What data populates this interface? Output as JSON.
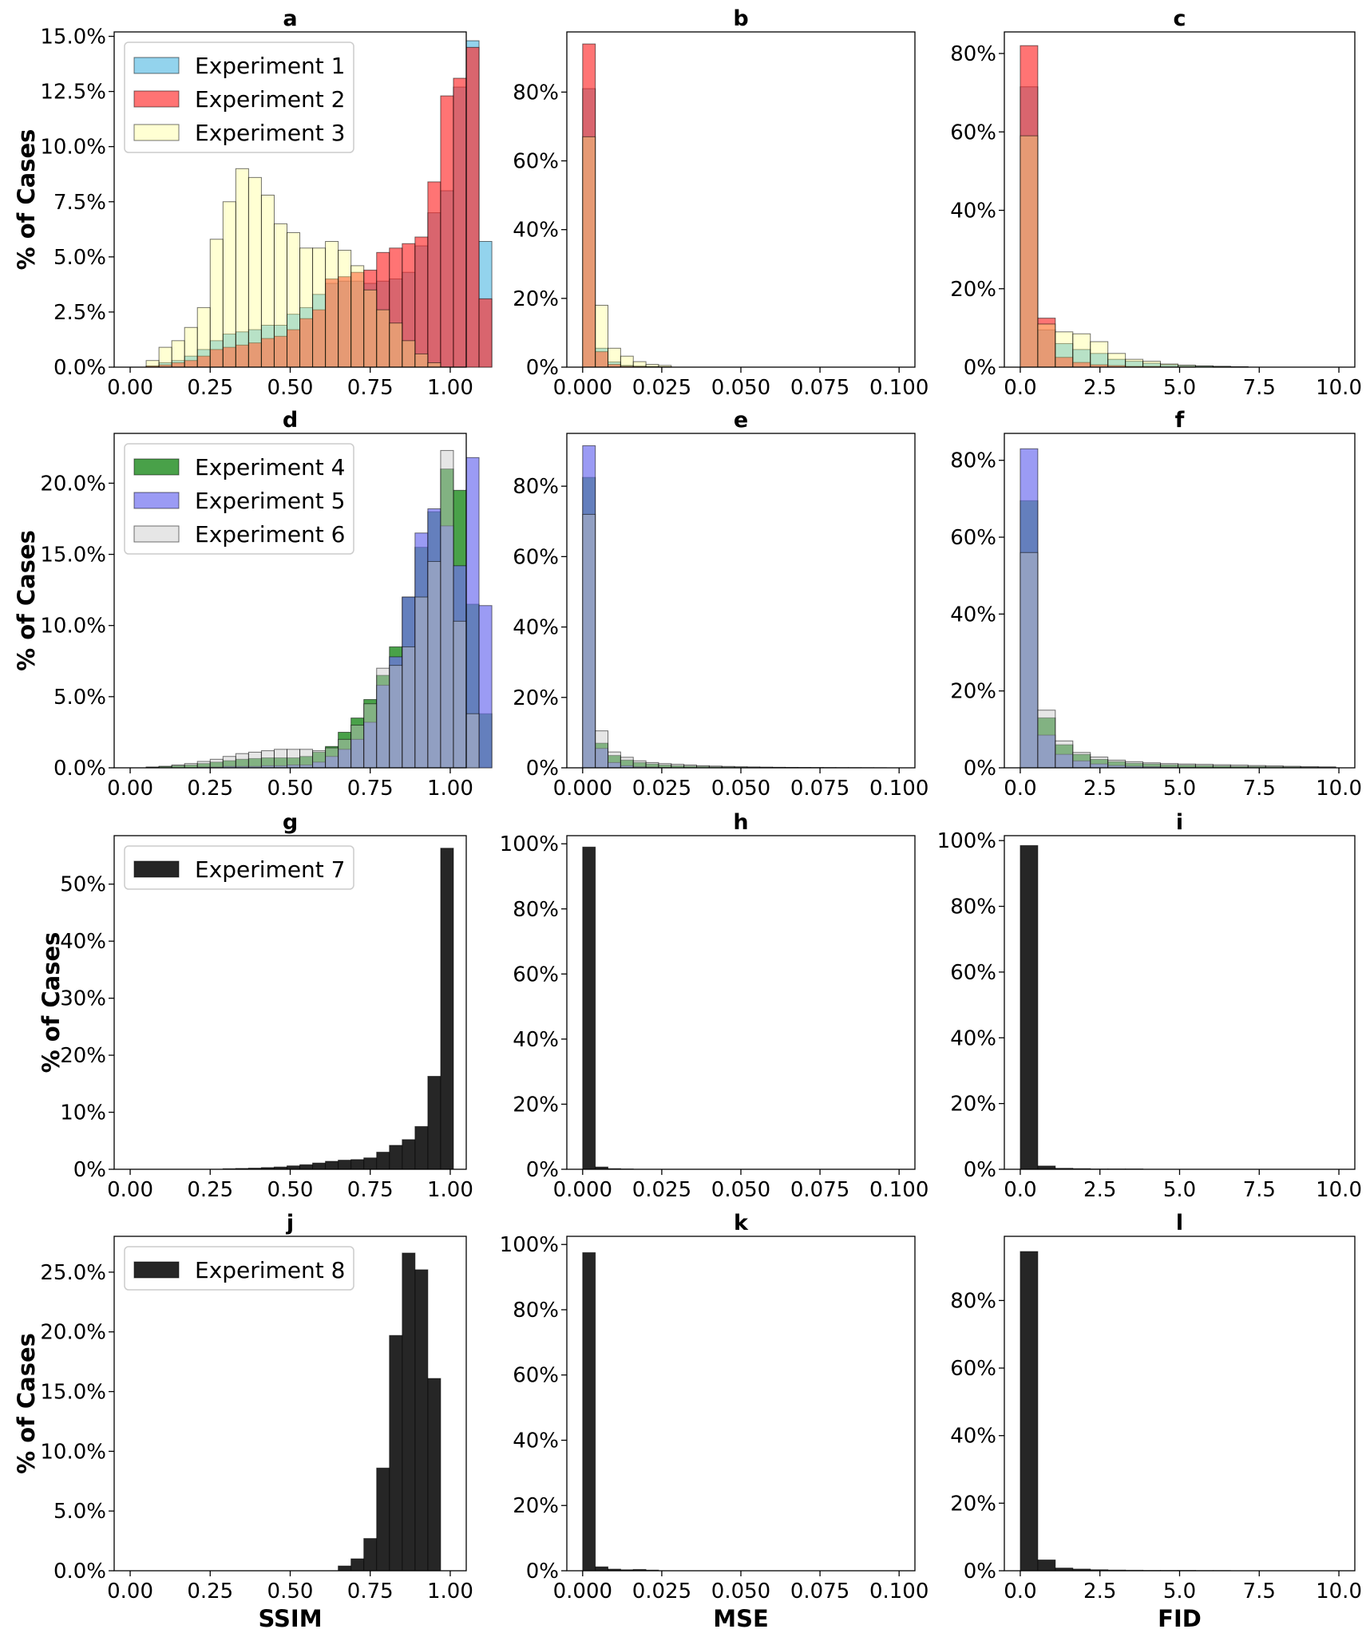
{
  "colors": {
    "Experiment 1": "#87ceeb",
    "Experiment 2": "#ff2a2a",
    "Experiment 3": "#ffff80",
    "Experiment 4": "#1c8a1c",
    "Experiment 5": "#7070f0",
    "Experiment 6": "#c8c8c8",
    "Experiment 7": "#1a1a1a",
    "Experiment 8": "#1a1a1a"
  },
  "row_ylabel": "% of Cases",
  "column_xlabels": [
    "SSIM",
    "MSE",
    "FID"
  ],
  "chart_data": [
    {
      "panel": "a",
      "type": "bar",
      "title": "a",
      "ylabel": "% of Cases",
      "xlabel": "",
      "xlim": [
        -0.05,
        1.05
      ],
      "ylim": [
        0,
        15.2
      ],
      "xticks": [
        0,
        0.25,
        0.5,
        0.75,
        1.0
      ],
      "xtick_labels": [
        "0.00",
        "0.25",
        "0.50",
        "0.75",
        "1.00"
      ],
      "yticks": [
        0,
        2.5,
        5,
        7.5,
        10,
        12.5,
        15
      ],
      "ytick_labels": [
        "0.0%",
        "2.5%",
        "5.0%",
        "7.5%",
        "10.0%",
        "12.5%",
        "15.0%"
      ],
      "bin_start": 0.05,
      "bin_width": 0.04,
      "legend": "top-left",
      "series": [
        {
          "name": "Experiment 1",
          "alpha": 0.9,
          "values": [
            0.05,
            0.2,
            0.3,
            0.5,
            0.8,
            1.2,
            1.5,
            1.6,
            1.7,
            1.9,
            1.9,
            2.4,
            2.7,
            3.3,
            3.8,
            3.9,
            3.9,
            3.8,
            3.9,
            4.0,
            4.3,
            5.5,
            7.0,
            8.0,
            12.7,
            14.8,
            5.7
          ]
        },
        {
          "name": "Experiment 2",
          "alpha": 0.65,
          "values": [
            0.05,
            0.1,
            0.2,
            0.3,
            0.5,
            0.8,
            0.9,
            1.0,
            1.1,
            1.3,
            1.4,
            1.7,
            2.2,
            2.6,
            4.0,
            4.1,
            4.3,
            4.4,
            5.2,
            5.4,
            5.6,
            5.9,
            8.4,
            12.3,
            13.1,
            14.5,
            3.1
          ]
        },
        {
          "name": "Experiment 3",
          "alpha": 0.35,
          "values": [
            0.3,
            0.9,
            1.2,
            1.8,
            2.7,
            5.8,
            7.5,
            9.0,
            8.6,
            7.8,
            6.5,
            6.1,
            5.4,
            5.4,
            5.7,
            5.3,
            4.6,
            3.5,
            2.6,
            2.0,
            1.2,
            0.6,
            0.2,
            0.0,
            0.0,
            0.0,
            0.0
          ]
        }
      ]
    },
    {
      "panel": "b",
      "type": "bar",
      "title": "b",
      "ylabel": "",
      "xlabel": "",
      "xlim": [
        -0.005,
        0.105
      ],
      "ylim": [
        0,
        97.5
      ],
      "xticks": [
        0,
        0.025,
        0.05,
        0.075,
        0.1
      ],
      "xtick_labels": [
        "0.000",
        "0.025",
        "0.050",
        "0.075",
        "0.100"
      ],
      "yticks": [
        0,
        20,
        40,
        60,
        80
      ],
      "ytick_labels": [
        "0%",
        "20%",
        "40%",
        "60%",
        "80%"
      ],
      "bin_start": 0,
      "bin_width": 0.004,
      "series": [
        {
          "name": "Experiment 1",
          "alpha": 0.9,
          "values": [
            81,
            5.5,
            1.5,
            0.5,
            0.3,
            0.2,
            0.1
          ]
        },
        {
          "name": "Experiment 2",
          "alpha": 0.65,
          "values": [
            94,
            4.5,
            0.8,
            0.3,
            0.2,
            0.1,
            0.1
          ]
        },
        {
          "name": "Experiment 3",
          "alpha": 0.35,
          "values": [
            67,
            18,
            5.5,
            3.2,
            1.6,
            0.8,
            0.5
          ]
        }
      ]
    },
    {
      "panel": "c",
      "type": "bar",
      "title": "c",
      "ylabel": "",
      "xlabel": "",
      "xlim": [
        -0.5,
        10.5
      ],
      "ylim": [
        0,
        85.5
      ],
      "xticks": [
        0,
        2.5,
        5,
        7.5,
        10
      ],
      "xtick_labels": [
        "0.0",
        "2.5",
        "5.0",
        "7.5",
        "10.0"
      ],
      "yticks": [
        0,
        20,
        40,
        60,
        80
      ],
      "ytick_labels": [
        "0%",
        "20%",
        "40%",
        "60%",
        "80%"
      ],
      "bin_start": 0,
      "bin_width": 0.55,
      "series": [
        {
          "name": "Experiment 1",
          "alpha": 0.9,
          "values": [
            71.5,
            9.5,
            6,
            4.5,
            3.5,
            2,
            1.5,
            1,
            0.6,
            0.4,
            0.3,
            0.2,
            0.1
          ]
        },
        {
          "name": "Experiment 2",
          "alpha": 0.65,
          "values": [
            82,
            12.5,
            2.5,
            1.2,
            0.6,
            0.4,
            0.2,
            0.2,
            0.1,
            0.1,
            0.0,
            0.0,
            0.0
          ]
        },
        {
          "name": "Experiment 3",
          "alpha": 0.35,
          "values": [
            59,
            11,
            9,
            8.5,
            6.5,
            3.5,
            2,
            1.5,
            0.8,
            0.5,
            0.3,
            0.2,
            0.1
          ]
        }
      ]
    },
    {
      "panel": "d",
      "type": "bar",
      "title": "d",
      "ylabel": "% of Cases",
      "xlabel": "",
      "xlim": [
        -0.05,
        1.05
      ],
      "ylim": [
        0,
        23.5
      ],
      "xticks": [
        0,
        0.25,
        0.5,
        0.75,
        1.0
      ],
      "xtick_labels": [
        "0.00",
        "0.25",
        "0.50",
        "0.75",
        "1.00"
      ],
      "yticks": [
        0,
        5,
        10,
        15,
        20
      ],
      "ytick_labels": [
        "0.0%",
        "5.0%",
        "10.0%",
        "15.0%",
        "20.0%"
      ],
      "bin_start": 0.05,
      "bin_width": 0.04,
      "legend": "top-left",
      "series": [
        {
          "name": "Experiment 4",
          "alpha": 0.8,
          "values": [
            0.05,
            0.1,
            0.15,
            0.2,
            0.3,
            0.4,
            0.5,
            0.6,
            0.65,
            0.7,
            0.7,
            0.7,
            0.8,
            1.1,
            1.5,
            2.5,
            3.5,
            4.8,
            6.5,
            8.5,
            12.0,
            15.5,
            18.0,
            21.0,
            19.5,
            11.5,
            3.8
          ]
        },
        {
          "name": "Experiment 5",
          "alpha": 0.7,
          "values": [
            0.0,
            0.0,
            0.0,
            0.0,
            0.05,
            0.05,
            0.1,
            0.1,
            0.1,
            0.15,
            0.15,
            0.2,
            0.2,
            0.4,
            0.8,
            1.3,
            2.0,
            3.2,
            5.8,
            7.8,
            12.0,
            16.5,
            18.2,
            17.0,
            14.2,
            21.8,
            11.4
          ]
        },
        {
          "name": "Experiment 6",
          "alpha": 0.45,
          "values": [
            0.05,
            0.1,
            0.2,
            0.3,
            0.45,
            0.6,
            0.8,
            1.0,
            1.1,
            1.2,
            1.3,
            1.3,
            1.3,
            1.2,
            1.4,
            2.0,
            3.0,
            4.5,
            7.0,
            7.2,
            8.5,
            12.0,
            14.5,
            22.3,
            10.3,
            3.8,
            0.0
          ]
        }
      ]
    },
    {
      "panel": "e",
      "type": "bar",
      "title": "e",
      "ylabel": "",
      "xlabel": "",
      "xlim": [
        -0.005,
        0.105
      ],
      "ylim": [
        0,
        95
      ],
      "xticks": [
        0,
        0.025,
        0.05,
        0.075,
        0.1
      ],
      "xtick_labels": [
        "0.000",
        "0.025",
        "0.050",
        "0.075",
        "0.100"
      ],
      "yticks": [
        0,
        20,
        40,
        60,
        80
      ],
      "ytick_labels": [
        "0%",
        "20%",
        "40%",
        "60%",
        "80%"
      ],
      "bin_start": 0,
      "bin_width": 0.004,
      "series": [
        {
          "name": "Experiment 4",
          "alpha": 0.8,
          "values": [
            82.5,
            7,
            3.5,
            2.2,
            1.5,
            1.1,
            0.8,
            0.6,
            0.5,
            0.4,
            0.3,
            0.25,
            0.2,
            0.15,
            0.12,
            0.1,
            0.08,
            0.06,
            0.05,
            0.04,
            0.03,
            0.02,
            0.02,
            0.01
          ]
        },
        {
          "name": "Experiment 5",
          "alpha": 0.7,
          "values": [
            91.5,
            5.5,
            1.5,
            0.6,
            0.3,
            0.2,
            0.1,
            0.05,
            0.05,
            0.03,
            0.02,
            0.01,
            0.01,
            0.0,
            0.0,
            0.0,
            0.0,
            0.0,
            0.0,
            0.0,
            0.0,
            0.0,
            0.0,
            0.0
          ]
        },
        {
          "name": "Experiment 6",
          "alpha": 0.45,
          "values": [
            72,
            10.5,
            4.5,
            3,
            2,
            1.5,
            1.2,
            1,
            0.8,
            0.6,
            0.5,
            0.4,
            0.3,
            0.25,
            0.2,
            0.15,
            0.12,
            0.1,
            0.08,
            0.06,
            0.05,
            0.04,
            0.03,
            0.02
          ]
        }
      ]
    },
    {
      "panel": "f",
      "type": "bar",
      "title": "f",
      "ylabel": "",
      "xlabel": "",
      "xlim": [
        -0.5,
        10.5
      ],
      "ylim": [
        0,
        87
      ],
      "xticks": [
        0,
        2.5,
        5,
        7.5,
        10
      ],
      "xtick_labels": [
        "0.0",
        "2.5",
        "5.0",
        "7.5",
        "10.0"
      ],
      "yticks": [
        0,
        20,
        40,
        60,
        80
      ],
      "ytick_labels": [
        "0%",
        "20%",
        "40%",
        "60%",
        "80%"
      ],
      "bin_start": 0,
      "bin_width": 0.55,
      "series": [
        {
          "name": "Experiment 4",
          "alpha": 0.8,
          "values": [
            69.5,
            13,
            6,
            3.5,
            2.2,
            1.6,
            1.2,
            1,
            0.8,
            0.7,
            0.6,
            0.5,
            0.4,
            0.35,
            0.3,
            0.25,
            0.2,
            0.15
          ]
        },
        {
          "name": "Experiment 5",
          "alpha": 0.7,
          "values": [
            83,
            8.5,
            3.5,
            1.8,
            1,
            0.6,
            0.4,
            0.3,
            0.2,
            0.15,
            0.1,
            0.08,
            0.06,
            0.05,
            0.04,
            0.03,
            0.02,
            0.02
          ]
        },
        {
          "name": "Experiment 6",
          "alpha": 0.45,
          "values": [
            56,
            15,
            7,
            4,
            2.8,
            2,
            1.6,
            1.3,
            1.1,
            1,
            0.9,
            0.8,
            0.7,
            0.6,
            0.5,
            0.4,
            0.3,
            0.25
          ]
        }
      ]
    },
    {
      "panel": "g",
      "type": "bar",
      "title": "g",
      "ylabel": "% of Cases",
      "xlabel": "",
      "xlim": [
        -0.05,
        1.05
      ],
      "ylim": [
        0,
        58.5
      ],
      "xticks": [
        0,
        0.25,
        0.5,
        0.75,
        1.0
      ],
      "xtick_labels": [
        "0.00",
        "0.25",
        "0.50",
        "0.75",
        "1.00"
      ],
      "yticks": [
        0,
        10,
        20,
        30,
        40,
        50
      ],
      "ytick_labels": [
        "0%",
        "10%",
        "20%",
        "30%",
        "40%",
        "50%"
      ],
      "bin_start": 0.29,
      "bin_width": 0.04,
      "legend": "top-left",
      "series": [
        {
          "name": "Experiment 7",
          "alpha": 0.95,
          "values": [
            0.1,
            0.15,
            0.2,
            0.3,
            0.4,
            0.6,
            0.8,
            1.1,
            1.4,
            1.6,
            1.7,
            2.0,
            3.0,
            4.2,
            5.2,
            7.5,
            16.3,
            56.3
          ]
        }
      ]
    },
    {
      "panel": "h",
      "type": "bar",
      "title": "h",
      "ylabel": "",
      "xlabel": "",
      "xlim": [
        -0.005,
        0.105
      ],
      "ylim": [
        0,
        102.5
      ],
      "xticks": [
        0,
        0.025,
        0.05,
        0.075,
        0.1
      ],
      "xtick_labels": [
        "0.000",
        "0.025",
        "0.050",
        "0.075",
        "0.100"
      ],
      "yticks": [
        0,
        20,
        40,
        60,
        80,
        100
      ],
      "ytick_labels": [
        "0%",
        "20%",
        "40%",
        "60%",
        "80%",
        "100%"
      ],
      "bin_start": 0,
      "bin_width": 0.004,
      "series": [
        {
          "name": "Experiment 7",
          "alpha": 0.95,
          "values": [
            99,
            0.7,
            0.2,
            0.1
          ]
        }
      ]
    },
    {
      "panel": "i",
      "type": "bar",
      "title": "i",
      "ylabel": "",
      "xlabel": "",
      "xlim": [
        -0.5,
        10.5
      ],
      "ylim": [
        0,
        101.5
      ],
      "xticks": [
        0,
        2.5,
        5,
        7.5,
        10
      ],
      "xtick_labels": [
        "0.0",
        "2.5",
        "5.0",
        "7.5",
        "10.0"
      ],
      "yticks": [
        0,
        20,
        40,
        60,
        80,
        100
      ],
      "ytick_labels": [
        "0%",
        "20%",
        "40%",
        "60%",
        "80%",
        "100%"
      ],
      "bin_start": 0,
      "bin_width": 0.55,
      "series": [
        {
          "name": "Experiment 7",
          "alpha": 0.95,
          "values": [
            98.5,
            1.0,
            0.3,
            0.2,
            0.1,
            0.1,
            0.1
          ]
        }
      ]
    },
    {
      "panel": "j",
      "type": "bar",
      "title": "j",
      "ylabel": "% of Cases",
      "xlabel": "SSIM",
      "xlim": [
        -0.05,
        1.05
      ],
      "ylim": [
        0,
        28
      ],
      "xticks": [
        0,
        0.25,
        0.5,
        0.75,
        1.0
      ],
      "xtick_labels": [
        "0.00",
        "0.25",
        "0.50",
        "0.75",
        "1.00"
      ],
      "yticks": [
        0,
        5,
        10,
        15,
        20,
        25
      ],
      "ytick_labels": [
        "0.0%",
        "5.0%",
        "10.0%",
        "15.0%",
        "20.0%",
        "25.0%"
      ],
      "bin_start": 0.65,
      "bin_width": 0.04,
      "legend": "top-left",
      "series": [
        {
          "name": "Experiment 8",
          "alpha": 0.95,
          "values": [
            0.4,
            1.0,
            2.7,
            8.6,
            19.7,
            26.6,
            25.2,
            16.1
          ]
        }
      ]
    },
    {
      "panel": "k",
      "type": "bar",
      "title": "k",
      "ylabel": "",
      "xlabel": "MSE",
      "xlim": [
        -0.005,
        0.105
      ],
      "ylim": [
        0,
        102.5
      ],
      "xticks": [
        0,
        0.025,
        0.05,
        0.075,
        0.1
      ],
      "xtick_labels": [
        "0.000",
        "0.025",
        "0.050",
        "0.075",
        "0.100"
      ],
      "yticks": [
        0,
        20,
        40,
        60,
        80,
        100
      ],
      "ytick_labels": [
        "0%",
        "20%",
        "40%",
        "60%",
        "80%",
        "100%"
      ],
      "bin_start": 0,
      "bin_width": 0.004,
      "series": [
        {
          "name": "Experiment 8",
          "alpha": 0.95,
          "values": [
            97.5,
            1.2,
            0.5,
            0.3,
            0.4,
            0.2
          ]
        }
      ]
    },
    {
      "panel": "l",
      "type": "bar",
      "title": "l",
      "ylabel": "",
      "xlabel": "FID",
      "xlim": [
        -0.5,
        10.5
      ],
      "ylim": [
        0,
        99
      ],
      "xticks": [
        0,
        2.5,
        5,
        7.5,
        10
      ],
      "xtick_labels": [
        "0.0",
        "2.5",
        "5.0",
        "7.5",
        "10.0"
      ],
      "yticks": [
        0,
        20,
        40,
        60,
        80
      ],
      "ytick_labels": [
        "0%",
        "20%",
        "40%",
        "60%",
        "80%"
      ],
      "bin_start": 0,
      "bin_width": 0.55,
      "series": [
        {
          "name": "Experiment 8",
          "alpha": 0.95,
          "values": [
            94.5,
            3.2,
            0.8,
            0.5,
            0.3,
            0.2,
            0.15,
            0.1,
            0.1,
            0.1,
            0.05,
            0.05
          ]
        }
      ]
    }
  ]
}
